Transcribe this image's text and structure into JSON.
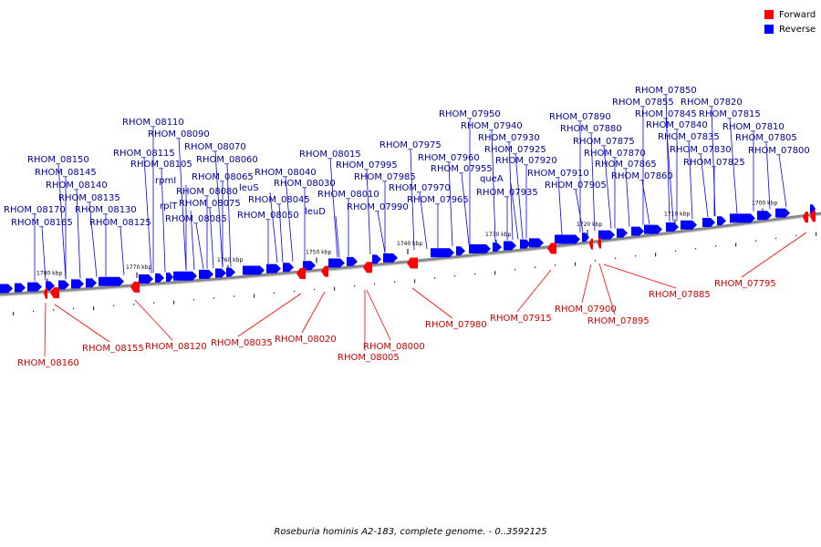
{
  "legend": {
    "forward_label": "Forward",
    "reverse_label": "Reverse",
    "forward_color": "#ff0000",
    "reverse_color": "#0000ff"
  },
  "caption": "Roseburia hominis A2-183, complete genome. - 0..3592125",
  "colors": {
    "forward_label_text": "#cc0000",
    "reverse_label_text": "#000099",
    "backbone": "#888888"
  },
  "kbp_ticks": [
    "1780 kbp",
    "1770 kbp",
    "1760 kbp",
    "1750 kbp",
    "1740 kbp",
    "1730 kbp",
    "1720 kbp",
    "1710 kbp",
    "1700 kbp"
  ],
  "reverse_labels": [
    "RHOM_08170",
    "RHOM_08165",
    "RHOM_08150",
    "RHOM_08145",
    "RHOM_08140",
    "RHOM_08135",
    "RHOM_08130",
    "RHOM_08125",
    "RHOM_08115",
    "RHOM_08110",
    "RHOM_08105",
    "RHOM_08090",
    "rpmI",
    "rplT",
    "RHOM_08085",
    "RHOM_08080",
    "RHOM_08075",
    "RHOM_08070",
    "RHOM_08065",
    "RHOM_08060",
    "leuS",
    "RHOM_08050",
    "RHOM_08045",
    "RHOM_08040",
    "RHOM_08030",
    "leuD",
    "RHOM_08015",
    "RHOM_08010",
    "RHOM_07995",
    "RHOM_07990",
    "RHOM_07985",
    "RHOM_07975",
    "RHOM_07970",
    "RHOM_07965",
    "RHOM_07960",
    "RHOM_07955",
    "RHOM_07950",
    "RHOM_07940",
    "queA",
    "RHOM_07935",
    "RHOM_07930",
    "RHOM_07925",
    "RHOM_07920",
    "RHOM_07910",
    "RHOM_07905",
    "RHOM_07890",
    "RHOM_07880",
    "RHOM_07875",
    "RHOM_07870",
    "RHOM_07865",
    "RHOM_07860",
    "RHOM_07855",
    "RHOM_07850",
    "RHOM_07845",
    "RHOM_07840",
    "RHOM_07835",
    "RHOM_07830",
    "RHOM_07825",
    "RHOM_07820",
    "RHOM_07815",
    "RHOM_07810",
    "RHOM_07805",
    "RHOM_07800"
  ],
  "forward_labels": [
    "RHOM_08160",
    "RHOM_08155",
    "RHOM_08120",
    "RHOM_08035",
    "RHOM_08020",
    "RHOM_08000",
    "RHOM_08005",
    "RHOM_07980",
    "RHOM_07915",
    "RHOM_07900",
    "RHOM_07895",
    "RHOM_07885",
    "RHOM_07795"
  ]
}
